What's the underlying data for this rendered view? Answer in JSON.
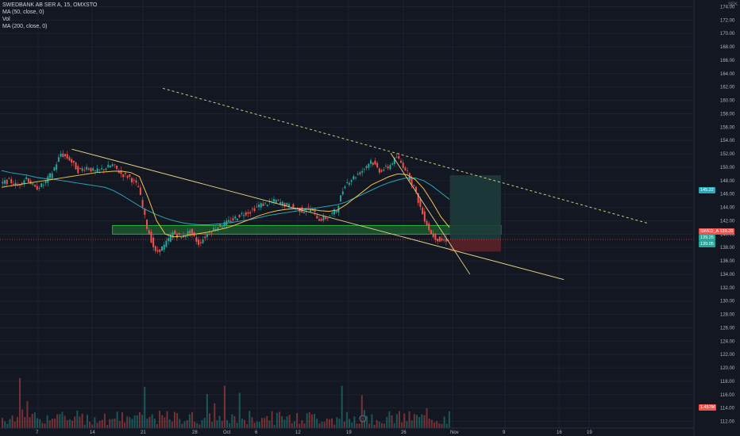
{
  "legend": {
    "symbol": "SWEDBANK AB SER A, 15, OMXSTO",
    "ma50": "MA (50, close, 0)",
    "vol": "Vol",
    "ma200": "MA (200, close, 0)"
  },
  "currency": "SEK",
  "price_tags": {
    "symbol_label": "SWED_A",
    "last": "139.20",
    "bid": "139.25",
    "ask": "139.05",
    "ma": "145.22",
    "volume": "1.457M"
  },
  "colors": {
    "background": "#131722",
    "candle_up": "#26a69a",
    "candle_down": "#ef5350",
    "ma50": "#f0c14b",
    "ma200": "#2aa7b8",
    "trendline": "#e8d88a",
    "support_zone": "#1f7a33",
    "target_zone": "#1e3b3a",
    "stop_zone": "#5a2127",
    "price_line": "#ef5350"
  },
  "chart_data": {
    "type": "candlestick",
    "ylim": [
      111,
      175
    ],
    "y_ticks": [
      112,
      114,
      116,
      118,
      120,
      122,
      124,
      126,
      128,
      130,
      132,
      134,
      136,
      138,
      140,
      142,
      144,
      146,
      148,
      150,
      152,
      154,
      156,
      158,
      160,
      162,
      164,
      166,
      168,
      170,
      172,
      174
    ],
    "x_ticks": [
      "7",
      "14",
      "21",
      "28",
      "Oct",
      "6",
      "12",
      "19",
      "26",
      "Nov",
      "9",
      "16",
      "19"
    ],
    "last_price": 139.2,
    "series": {
      "close": [
        147.5,
        148.0,
        147.2,
        148.5,
        146.8,
        147.4,
        149.2,
        152.0,
        151.2,
        149.5,
        150.0,
        149.3,
        149.8,
        150.3,
        149.0,
        148.5,
        147.0,
        141.0,
        137.2,
        138.2,
        140.2,
        139.5,
        140.4,
        138.6,
        140.0,
        141.0,
        141.5,
        142.2,
        143.0,
        143.4,
        144.3,
        144.6,
        145.0,
        144.4,
        144.0,
        143.5,
        143.8,
        142.2,
        142.5,
        143.6,
        147.5,
        148.5,
        149.5,
        151.0,
        149.5,
        150.0,
        151.5,
        149.8,
        147.0,
        143.0,
        140.0,
        139.0,
        139.2
      ],
      "ma50": [
        147.0,
        147.2,
        147.4,
        147.6,
        147.8,
        148.0,
        148.2,
        148.4,
        148.6,
        148.8,
        149.0,
        149.2,
        149.3,
        149.4,
        149.4,
        149.2,
        148.6,
        145.5,
        142.0,
        140.0,
        139.6,
        139.7,
        139.9,
        140.1,
        140.3,
        140.6,
        140.9,
        141.3,
        141.8,
        142.3,
        142.8,
        143.2,
        143.5,
        143.7,
        143.8,
        143.8,
        143.7,
        143.5,
        143.4,
        143.6,
        144.4,
        145.4,
        146.4,
        147.4,
        148.0,
        148.6,
        149.0,
        148.9,
        148.2,
        146.8,
        144.8,
        142.6,
        141.0
      ]
    },
    "ma200": [
      149.5,
      149.2,
      149.0,
      148.8,
      148.5,
      148.3,
      148.2,
      148.0,
      147.8,
      147.6,
      147.4,
      147.2,
      147.0,
      146.5,
      145.8,
      145.0,
      144.2,
      143.5,
      142.9,
      142.4,
      142.0,
      141.7,
      141.5,
      141.4,
      141.4,
      141.5,
      141.6,
      141.8,
      142.0,
      142.2,
      142.5,
      142.8,
      143.0,
      143.2,
      143.4,
      143.6,
      143.8,
      144.0,
      144.2,
      144.4,
      144.8,
      145.4,
      146.0,
      146.6,
      147.2,
      147.7,
      148.1,
      148.4,
      148.4,
      148.0,
      147.2,
      146.2,
      145.2
    ],
    "trendlines": [
      {
        "name": "upper-dashed",
        "from": [
          0.22,
          161.8
        ],
        "to": [
          0.876,
          141.6
        ],
        "dashed": true
      },
      {
        "name": "descending-support",
        "from": [
          0.097,
          152.7
        ],
        "to": [
          0.762,
          133.2
        ],
        "dashed": false
      },
      {
        "name": "steep-down",
        "from": [
          0.528,
          152.1
        ],
        "to": [
          0.635,
          134.0
        ],
        "dashed": false
      }
    ],
    "zones": [
      {
        "name": "support-zone",
        "x": [
          0.152,
          0.677
        ],
        "y": [
          140.0,
          141.3
        ]
      },
      {
        "name": "target-zone",
        "x": [
          0.608,
          0.677
        ],
        "y": [
          139.2,
          148.8
        ]
      },
      {
        "name": "stop-zone",
        "x": [
          0.608,
          0.677
        ],
        "y": [
          137.4,
          139.2
        ]
      }
    ]
  }
}
